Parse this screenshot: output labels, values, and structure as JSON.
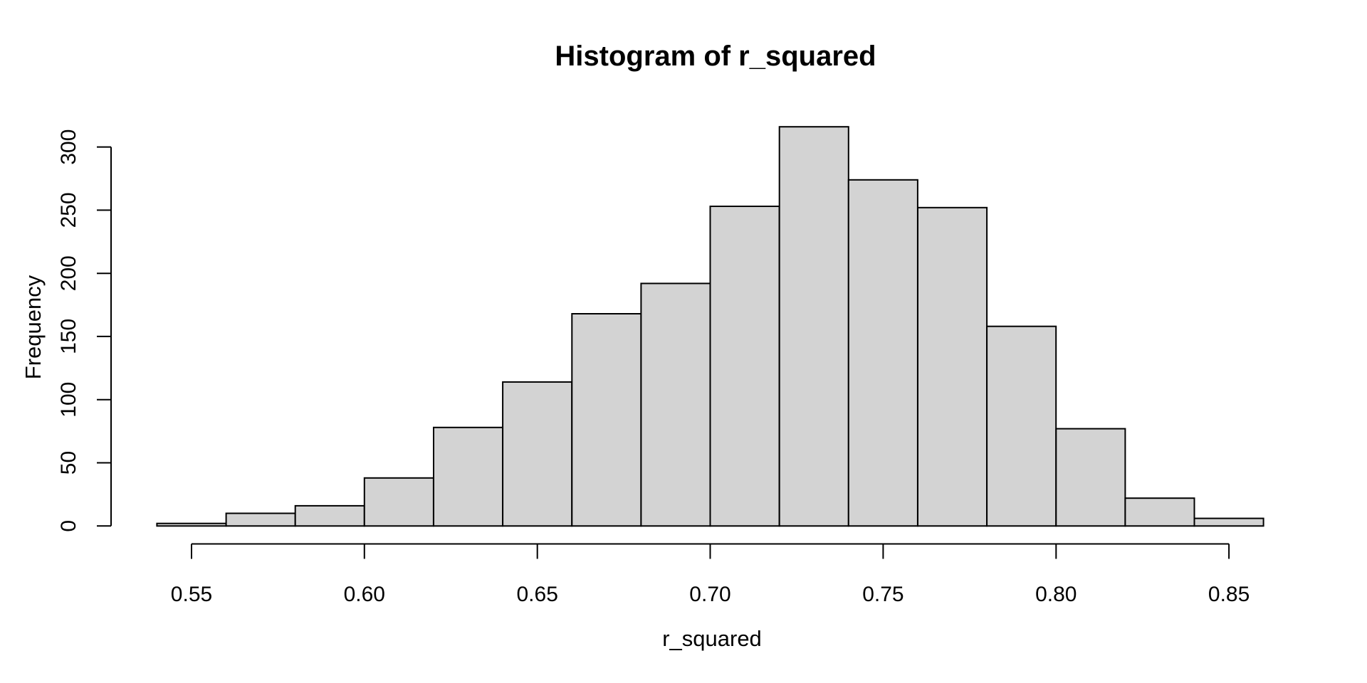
{
  "figure": {
    "title": "Histogram of r_squared",
    "xlabel": "r_squared",
    "ylabel": "Frequency"
  },
  "chart_data": {
    "type": "bar",
    "subtype": "histogram",
    "title": "Histogram of r_squared",
    "xlabel": "r_squared",
    "ylabel": "Frequency",
    "bin_width": 0.02,
    "bin_start": 0.54,
    "bin_edges": [
      0.54,
      0.56,
      0.58,
      0.6,
      0.62,
      0.64,
      0.66,
      0.68,
      0.7,
      0.72,
      0.74,
      0.76,
      0.78,
      0.8,
      0.82,
      0.84,
      0.86
    ],
    "counts": [
      2,
      10,
      16,
      38,
      78,
      114,
      168,
      192,
      253,
      316,
      274,
      252,
      158,
      77,
      22,
      6
    ],
    "x_ticks": [
      0.55,
      0.6,
      0.65,
      0.7,
      0.75,
      0.8,
      0.85
    ],
    "x_tick_labels": [
      "0.55",
      "0.60",
      "0.65",
      "0.70",
      "0.75",
      "0.80",
      "0.85"
    ],
    "y_ticks": [
      0,
      50,
      100,
      150,
      200,
      250,
      300
    ],
    "y_tick_labels": [
      "0",
      "50",
      "100",
      "150",
      "200",
      "250",
      "300"
    ],
    "xlim": [
      0.54,
      0.86
    ],
    "ylim": [
      0,
      300
    ],
    "x_axis_line_range": [
      0.55,
      0.85
    ],
    "grid": false,
    "legend": false,
    "colors": {
      "bar_fill": "#d3d3d3",
      "bar_border": "#000000",
      "axis": "#000000",
      "text": "#000000",
      "background": "#ffffff"
    }
  }
}
